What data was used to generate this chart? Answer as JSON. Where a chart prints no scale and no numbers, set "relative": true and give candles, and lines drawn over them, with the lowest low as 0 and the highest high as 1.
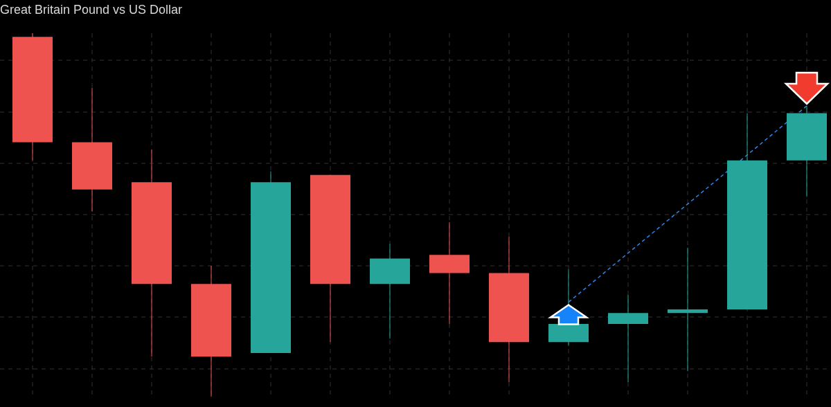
{
  "chart_data": {
    "type": "candlestick",
    "title": "Great Britain Pound vs US Dollar",
    "relative": true,
    "grid": true,
    "categories": [
      null,
      null,
      null,
      null,
      null,
      null,
      null,
      null,
      null,
      null,
      null,
      null,
      null,
      null
    ],
    "ohlc": [
      [
        0.99,
        1,
        0.65,
        0.7
      ],
      [
        0.7,
        0.85,
        0.51,
        0.57
      ],
      [
        0.59,
        0.68,
        0.11,
        0.31
      ],
      [
        0.31,
        0.36,
        0,
        0.11
      ],
      [
        0.12,
        0.62,
        0.12,
        0.59
      ],
      [
        0.61,
        0.61,
        0.15,
        0.31
      ],
      [
        0.31,
        0.42,
        0.16,
        0.38
      ],
      [
        0.39,
        0.48,
        0.2,
        0.34
      ],
      [
        0.34,
        0.44,
        0.04,
        0.15
      ],
      [
        0.15,
        0.35,
        0.14,
        0.2
      ],
      [
        0.2,
        0.28,
        0.04,
        0.23
      ],
      [
        0.23,
        0.41,
        0.07,
        0.24
      ],
      [
        0.24,
        0.78,
        0.24,
        0.65
      ],
      [
        0.65,
        0.8,
        0.55,
        0.78
      ]
    ],
    "colors": [
      "#ef5350",
      "#ef5350",
      "#ef5350",
      "#ef5350",
      "#26a69a",
      "#ef5350",
      "#26a69a",
      "#ef5350",
      "#ef5350",
      "#26a69a",
      "#26a69a",
      "#26a69a",
      "#26a69a",
      "#26a69a"
    ],
    "series": [
      {
        "type": "line",
        "values": [
          null,
          null,
          null,
          null,
          null,
          null,
          null,
          null,
          null,
          0.26,
          null,
          null,
          null,
          0.8
        ],
        "color": "#2f86e6",
        "line_style": "dashed"
      }
    ]
  }
}
